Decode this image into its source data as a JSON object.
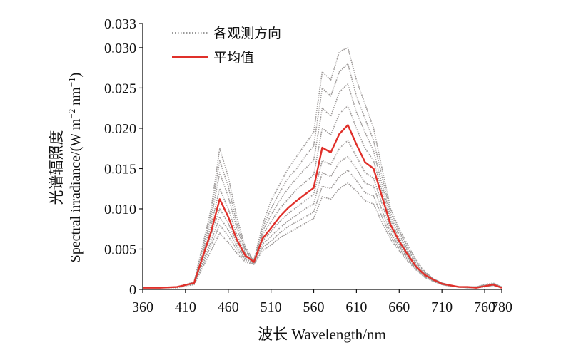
{
  "chart_data": {
    "type": "line",
    "xlabel": "波长 Wavelength/nm",
    "ylabel_cn": "光谱辐照度",
    "ylabel_en": "Spectral irradiance/(W m",
    "ylabel_sup1": "−2",
    "ylabel_mid": " nm",
    "ylabel_sup2": "−1",
    "ylabel_end": ")",
    "xlim": [
      360,
      780
    ],
    "ylim": [
      0,
      0.033
    ],
    "xticks": [
      360,
      410,
      460,
      510,
      560,
      610,
      660,
      710,
      760,
      780
    ],
    "xtick_labels": [
      "360",
      "410",
      "460",
      "510",
      "560",
      "610",
      "660",
      "710",
      "760",
      "780"
    ],
    "yticks": [
      0,
      0.005,
      0.01,
      0.015,
      0.02,
      0.025,
      0.03,
      0.033
    ],
    "ytick_labels": [
      "0",
      "0.005",
      "0.010",
      "0.015",
      "0.020",
      "0.025",
      "0.030",
      "0.033"
    ],
    "grid": false,
    "legend": {
      "position": "top-left",
      "entries": [
        {
          "label": "各观测方向",
          "color": "#9a9a9a",
          "style": "dotted"
        },
        {
          "label": "平均值",
          "color": "#e0302a",
          "style": "solid"
        }
      ]
    },
    "direction_color": "#9e9a99",
    "mean_color": "#e0302a",
    "x": [
      360,
      380,
      400,
      420,
      440,
      450,
      460,
      470,
      480,
      490,
      500,
      510,
      520,
      530,
      540,
      550,
      560,
      570,
      580,
      590,
      600,
      610,
      620,
      630,
      640,
      650,
      660,
      670,
      680,
      690,
      700,
      710,
      720,
      730,
      740,
      750,
      760,
      770,
      780
    ],
    "series_mean": {
      "name": "平均值",
      "values": [
        0.0002,
        0.0002,
        0.0003,
        0.0008,
        0.0072,
        0.0112,
        0.009,
        0.0062,
        0.0042,
        0.0034,
        0.0063,
        0.0076,
        0.009,
        0.0101,
        0.011,
        0.0118,
        0.0126,
        0.0176,
        0.017,
        0.0193,
        0.0204,
        0.018,
        0.0158,
        0.015,
        0.0115,
        0.008,
        0.006,
        0.0043,
        0.0028,
        0.0018,
        0.0012,
        0.0007,
        0.0005,
        0.0003,
        0.0003,
        0.0002,
        0.0004,
        0.0006,
        0.0002
      ]
    },
    "series_directions": [
      {
        "values": [
          0.0002,
          0.0002,
          0.0003,
          0.0009,
          0.01,
          0.0175,
          0.014,
          0.009,
          0.0052,
          0.0036,
          0.008,
          0.011,
          0.013,
          0.015,
          0.0165,
          0.018,
          0.0195,
          0.027,
          0.026,
          0.0295,
          0.03,
          0.026,
          0.023,
          0.02,
          0.015,
          0.01,
          0.0075,
          0.0055,
          0.0036,
          0.0022,
          0.0013,
          0.0008,
          0.0005,
          0.0003,
          0.0003,
          0.0003,
          0.0006,
          0.0008,
          0.0003
        ]
      },
      {
        "values": [
          0.0002,
          0.0002,
          0.0003,
          0.0009,
          0.0095,
          0.016,
          0.0128,
          0.0082,
          0.005,
          0.0036,
          0.0076,
          0.01,
          0.012,
          0.0138,
          0.015,
          0.0165,
          0.0178,
          0.025,
          0.024,
          0.027,
          0.028,
          0.024,
          0.0212,
          0.0185,
          0.014,
          0.0095,
          0.0072,
          0.0052,
          0.0034,
          0.0021,
          0.0013,
          0.0008,
          0.0005,
          0.0003,
          0.0003,
          0.0003,
          0.0005,
          0.0007,
          0.0003
        ]
      },
      {
        "values": [
          0.0002,
          0.0002,
          0.0003,
          0.0008,
          0.0088,
          0.0145,
          0.0115,
          0.0076,
          0.0048,
          0.0035,
          0.0072,
          0.0092,
          0.011,
          0.0125,
          0.0138,
          0.015,
          0.016,
          0.0225,
          0.0215,
          0.0245,
          0.0255,
          0.022,
          0.0195,
          0.0172,
          0.013,
          0.009,
          0.0068,
          0.0049,
          0.0032,
          0.002,
          0.0013,
          0.0008,
          0.0005,
          0.0003,
          0.0003,
          0.0003,
          0.0005,
          0.0007,
          0.0003
        ]
      },
      {
        "values": [
          0.0002,
          0.0002,
          0.0003,
          0.0008,
          0.008,
          0.0125,
          0.01,
          0.0068,
          0.0045,
          0.0035,
          0.0068,
          0.0084,
          0.01,
          0.0112,
          0.0124,
          0.0133,
          0.0142,
          0.02,
          0.0192,
          0.0218,
          0.0228,
          0.02,
          0.0175,
          0.016,
          0.0122,
          0.0085,
          0.0064,
          0.0046,
          0.003,
          0.0019,
          0.0012,
          0.0007,
          0.0005,
          0.0003,
          0.0003,
          0.0002,
          0.0005,
          0.0006,
          0.0002
        ]
      },
      {
        "values": [
          0.0002,
          0.0002,
          0.0003,
          0.0007,
          0.0068,
          0.01,
          0.0082,
          0.0058,
          0.004,
          0.0034,
          0.006,
          0.0072,
          0.0084,
          0.0094,
          0.0102,
          0.011,
          0.0118,
          0.016,
          0.0155,
          0.0175,
          0.0185,
          0.0165,
          0.0145,
          0.0138,
          0.0106,
          0.0075,
          0.0057,
          0.0041,
          0.0027,
          0.0017,
          0.0011,
          0.0007,
          0.0005,
          0.0003,
          0.0003,
          0.0002,
          0.0004,
          0.0006,
          0.0002
        ]
      },
      {
        "values": [
          0.0002,
          0.0002,
          0.0003,
          0.0007,
          0.006,
          0.009,
          0.0074,
          0.0054,
          0.0038,
          0.0033,
          0.0056,
          0.0066,
          0.0076,
          0.0085,
          0.0092,
          0.01,
          0.0106,
          0.0145,
          0.014,
          0.0158,
          0.0165,
          0.015,
          0.0132,
          0.0128,
          0.0098,
          0.007,
          0.0054,
          0.0039,
          0.0026,
          0.0016,
          0.0011,
          0.0006,
          0.0004,
          0.0003,
          0.0002,
          0.0002,
          0.0004,
          0.0005,
          0.0002
        ]
      },
      {
        "values": [
          0.0002,
          0.0002,
          0.0003,
          0.0006,
          0.0055,
          0.008,
          0.0066,
          0.005,
          0.0036,
          0.0032,
          0.0052,
          0.006,
          0.007,
          0.0078,
          0.0084,
          0.009,
          0.0096,
          0.0128,
          0.0125,
          0.014,
          0.0148,
          0.0135,
          0.012,
          0.0116,
          0.009,
          0.0066,
          0.0051,
          0.0037,
          0.0025,
          0.0015,
          0.001,
          0.0006,
          0.0004,
          0.0003,
          0.0002,
          0.0002,
          0.0004,
          0.0005,
          0.0002
        ]
      },
      {
        "values": [
          0.0002,
          0.0002,
          0.0002,
          0.0006,
          0.0048,
          0.007,
          0.0058,
          0.0045,
          0.0034,
          0.0031,
          0.0048,
          0.0055,
          0.0064,
          0.007,
          0.0076,
          0.0082,
          0.0088,
          0.0115,
          0.0112,
          0.0125,
          0.0132,
          0.0122,
          0.011,
          0.0106,
          0.0083,
          0.0062,
          0.0048,
          0.0035,
          0.0024,
          0.0015,
          0.001,
          0.0006,
          0.0004,
          0.0003,
          0.0002,
          0.0002,
          0.0003,
          0.0005,
          0.0002
        ]
      }
    ]
  }
}
